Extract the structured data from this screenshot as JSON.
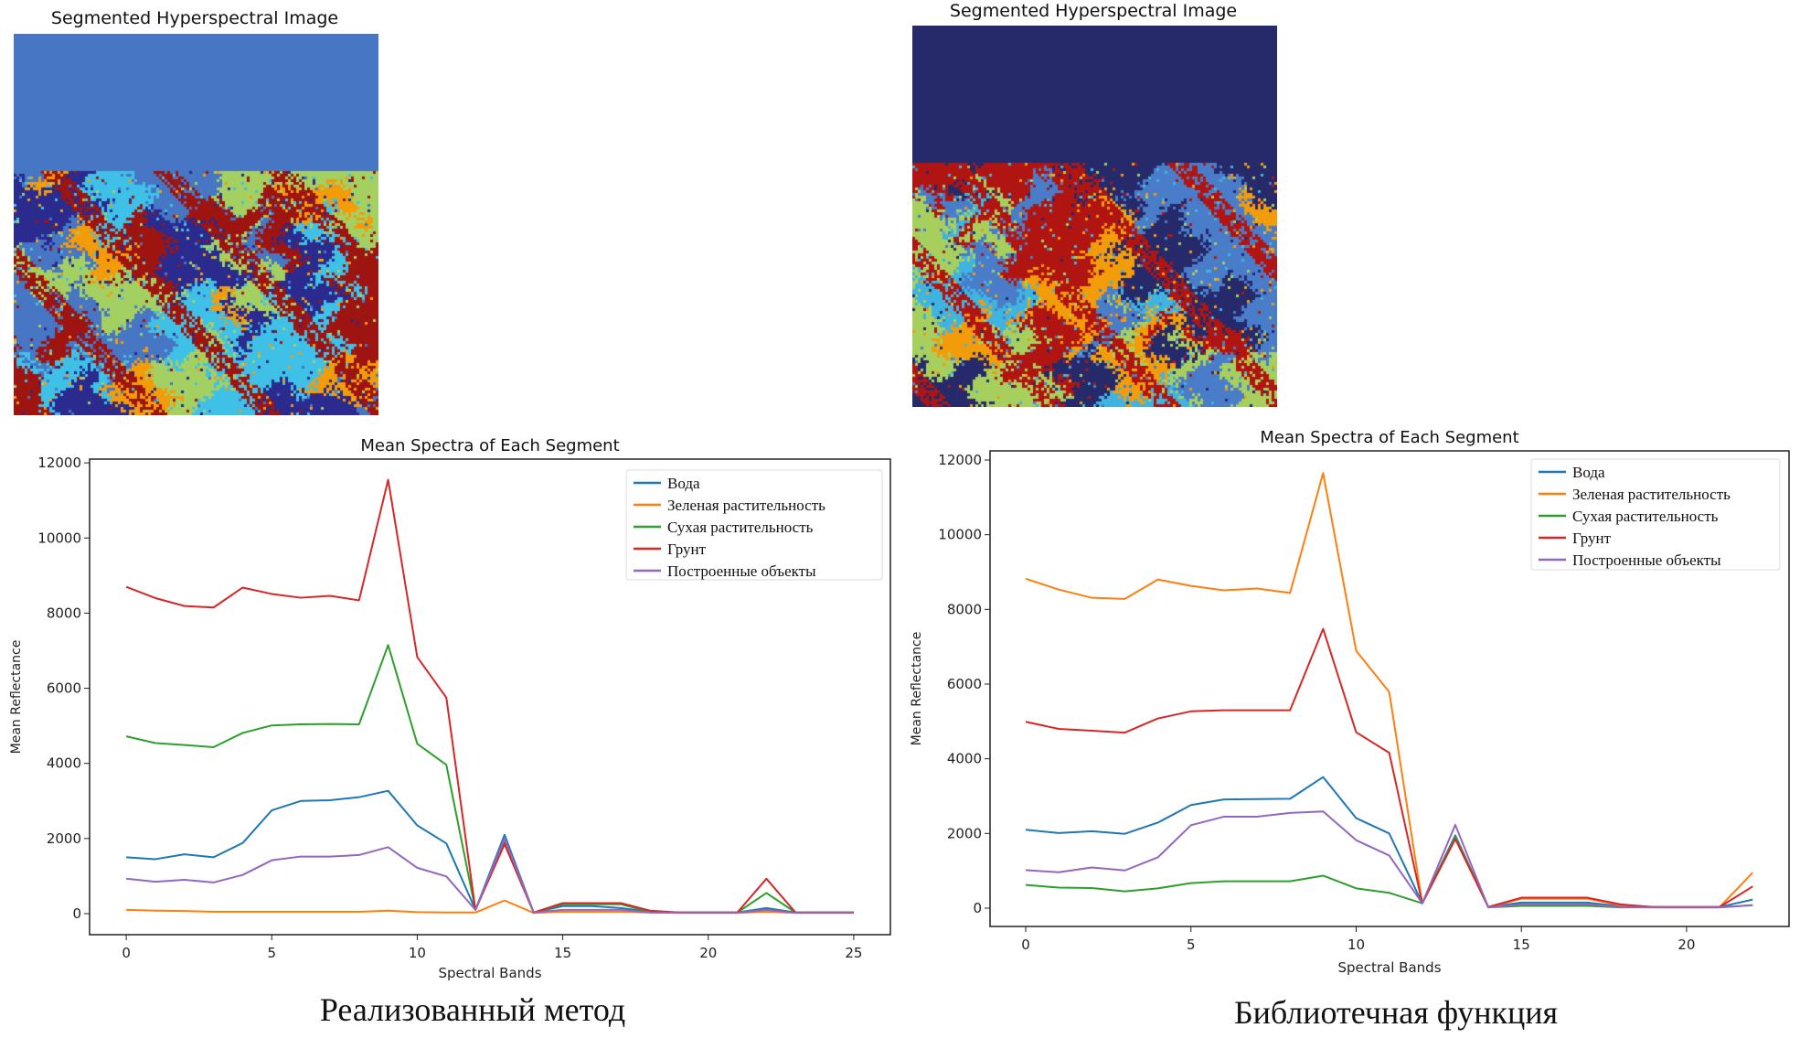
{
  "panels": [
    {
      "image_title": "Segmented Hyperspectral Image",
      "image_palette": [
        "#4676c4",
        "#2b2a8e",
        "#f29c0a",
        "#9e1410",
        "#a4d062",
        "#3fc0e6"
      ],
      "caption": "Реализованный метод"
    },
    {
      "image_title": "Segmented Hyperspectral Image",
      "image_palette": [
        "#262a6b",
        "#a6cf5e",
        "#4a7dc9",
        "#b11512",
        "#f29c0a",
        "#3fb4e0"
      ],
      "caption": "Библиотечная функция"
    }
  ],
  "chart_data": [
    {
      "type": "line",
      "title": "Mean Spectra of Each Segment",
      "xlabel": "Spectral Bands",
      "ylabel": "Mean Reflectance",
      "xlim": [
        -1.26,
        26.26
      ],
      "ylim": [
        -560,
        12100
      ],
      "xticks": [
        0,
        5,
        10,
        15,
        20,
        25
      ],
      "yticks": [
        0,
        2000,
        4000,
        6000,
        8000,
        10000,
        12000
      ],
      "grid": false,
      "legend_placement": "top-right",
      "x": [
        0,
        1,
        2,
        3,
        4,
        5,
        6,
        7,
        8,
        9,
        10,
        11,
        12,
        13,
        14,
        15,
        16,
        17,
        18,
        19,
        20,
        21,
        22,
        23,
        24,
        25
      ],
      "series": [
        {
          "name": "Вода",
          "color": "#1f77b4",
          "values": [
            1500,
            1450,
            1580,
            1500,
            1880,
            2750,
            3000,
            3020,
            3100,
            3270,
            2350,
            1870,
            100,
            2100,
            30,
            200,
            200,
            150,
            50,
            30,
            30,
            30,
            150,
            30,
            30,
            30
          ]
        },
        {
          "name": "Зеленая растительность",
          "color": "#ff7f0e",
          "values": [
            100,
            80,
            70,
            50,
            50,
            50,
            50,
            50,
            50,
            80,
            40,
            30,
            30,
            350,
            20,
            50,
            50,
            50,
            30,
            20,
            20,
            20,
            50,
            20,
            20,
            20
          ]
        },
        {
          "name": "Сухая растительность",
          "color": "#2ca02c",
          "values": [
            4720,
            4540,
            4490,
            4430,
            4810,
            5010,
            5040,
            5050,
            5040,
            7150,
            4520,
            3960,
            100,
            1900,
            30,
            250,
            250,
            250,
            50,
            30,
            30,
            30,
            550,
            30,
            30,
            30
          ]
        },
        {
          "name": "Грунт",
          "color": "#d62728",
          "values": [
            8700,
            8400,
            8190,
            8150,
            8680,
            8510,
            8410,
            8460,
            8340,
            11550,
            6830,
            5750,
            100,
            1850,
            30,
            280,
            280,
            280,
            80,
            30,
            30,
            30,
            930,
            30,
            30,
            30
          ]
        },
        {
          "name": "Построенные объекты",
          "color": "#9467bd",
          "values": [
            930,
            850,
            900,
            830,
            1030,
            1420,
            1520,
            1520,
            1560,
            1770,
            1220,
            990,
            100,
            2000,
            30,
            100,
            100,
            100,
            30,
            20,
            20,
            20,
            100,
            20,
            20,
            20
          ]
        }
      ]
    },
    {
      "type": "line",
      "title": "Mean Spectra of Each Segment",
      "xlabel": "Spectral Bands",
      "ylabel": "Mean Reflectance",
      "xlim": [
        -1.08,
        23.1
      ],
      "ylim": [
        -490,
        12245
      ],
      "xticks": [
        0,
        5,
        10,
        15,
        20
      ],
      "yticks": [
        0,
        2000,
        4000,
        6000,
        8000,
        10000,
        12000
      ],
      "grid": false,
      "legend_placement": "top-right",
      "x": [
        0,
        1,
        2,
        3,
        4,
        5,
        6,
        7,
        8,
        9,
        10,
        11,
        12,
        13,
        14,
        15,
        16,
        17,
        18,
        19,
        20,
        21,
        22
      ],
      "series": [
        {
          "name": "Вода",
          "color": "#1f77b4",
          "values": [
            2100,
            2010,
            2060,
            1990,
            2290,
            2760,
            2910,
            2920,
            2930,
            3510,
            2410,
            2000,
            130,
            1950,
            30,
            150,
            150,
            150,
            50,
            30,
            30,
            30,
            230
          ]
        },
        {
          "name": "Зеленая растительность",
          "color": "#ff7f0e",
          "values": [
            8820,
            8530,
            8310,
            8280,
            8800,
            8630,
            8510,
            8560,
            8440,
            11650,
            6890,
            5790,
            130,
            1900,
            30,
            250,
            250,
            250,
            80,
            30,
            30,
            30,
            950
          ]
        },
        {
          "name": "Сухая растительность",
          "color": "#2ca02c",
          "values": [
            620,
            550,
            540,
            450,
            530,
            670,
            720,
            720,
            720,
            870,
            530,
            410,
            130,
            1900,
            20,
            60,
            60,
            60,
            20,
            20,
            20,
            20,
            80
          ]
        },
        {
          "name": "Грунт",
          "color": "#d62728",
          "values": [
            4990,
            4800,
            4750,
            4700,
            5080,
            5270,
            5300,
            5300,
            5300,
            7480,
            4710,
            4160,
            130,
            1850,
            30,
            280,
            280,
            280,
            100,
            30,
            30,
            30,
            580
          ]
        },
        {
          "name": "Построенные объекты",
          "color": "#9467bd",
          "values": [
            1020,
            960,
            1090,
            1010,
            1360,
            2220,
            2450,
            2450,
            2550,
            2590,
            1820,
            1410,
            130,
            2230,
            20,
            100,
            100,
            100,
            30,
            20,
            20,
            20,
            80
          ]
        }
      ]
    }
  ]
}
